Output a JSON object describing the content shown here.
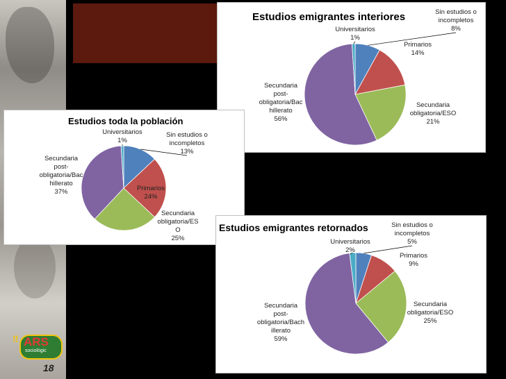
{
  "logo": {
    "text": "ARS",
    "subtext": "sociològic"
  },
  "page_number": "18",
  "colors": {
    "universitarios": "#4bacc6",
    "sin_estudios": "#4f81bd",
    "primarios": "#c0504d",
    "secundaria_eso": "#9bbb59",
    "secundaria_post": "#8064a2"
  },
  "chart_data": [
    {
      "type": "pie",
      "title": "Estudios emigrantes interiores",
      "categories": [
        "Sin estudios o incompletos",
        "Primarios",
        "Secundaria obligatoria/ESO",
        "Secundaria post-obligatoria/Bachillerato",
        "Universitarios"
      ],
      "values": [
        8,
        14,
        21,
        56,
        1
      ],
      "labels": [
        [
          "Sin estudios o",
          "incompletos",
          "8%"
        ],
        [
          "Primarios",
          "14%"
        ],
        [
          "Secundaria",
          "obligatoria/ESO",
          "21%"
        ],
        [
          "Secundaria",
          "post-",
          "obligatoria/Bac",
          "hillerato",
          "56%"
        ],
        [
          "Universitarios",
          "1%"
        ]
      ]
    },
    {
      "type": "pie",
      "title": "Estudios toda la población",
      "categories": [
        "Sin estudios o incompletos",
        "Primarios",
        "Secundaria obligatoria/ESO",
        "Secundaria post-obligatoria/Bachillerato",
        "Universitarios"
      ],
      "values": [
        13,
        24,
        25,
        37,
        1
      ],
      "labels": [
        [
          "Sin estudios o",
          "incompletos",
          "13%"
        ],
        [
          "Primarios",
          "24%"
        ],
        [
          "Secundaria",
          "obligatoria/ES",
          "O",
          "25%"
        ],
        [
          "Secundaria",
          "post-",
          "obligatoria/Bac",
          "hillerato",
          "37%"
        ],
        [
          "Universitarios",
          "1%"
        ]
      ]
    },
    {
      "type": "pie",
      "title": "Estudios emigrantes retornados",
      "categories": [
        "Sin estudios o incompletos",
        "Primarios",
        "Secundaria obligatoria/ESO",
        "Secundaria post-obligatoria/Bachillerato",
        "Universitarios"
      ],
      "values": [
        5,
        9,
        25,
        59,
        2
      ],
      "labels": [
        [
          "Sin estudios o",
          "incompletos",
          "5%"
        ],
        [
          "Primarios",
          "9%"
        ],
        [
          "Secundaria",
          "obligatoria/ESO",
          "25%"
        ],
        [
          "Secundaria",
          "post-",
          "obligatoria/Bach",
          "illerato",
          "59%"
        ],
        [
          "Universitarios",
          "2%"
        ]
      ]
    }
  ]
}
